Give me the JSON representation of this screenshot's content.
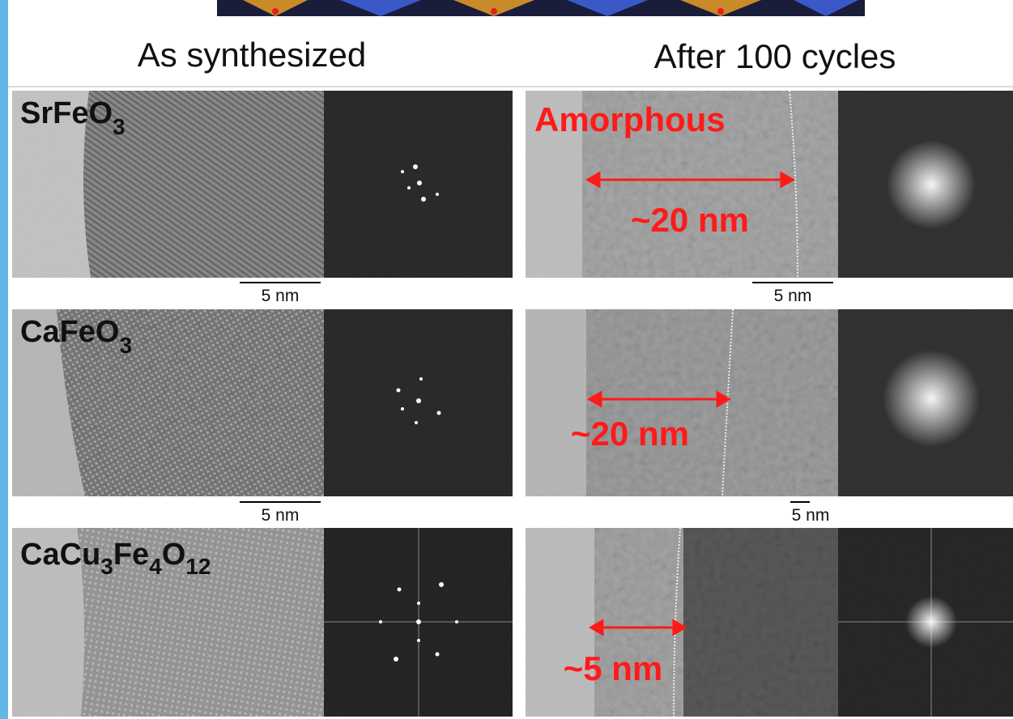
{
  "header": {
    "left": "As synthesized",
    "right": "After 100 cycles"
  },
  "rows": [
    {
      "formula": [
        "SrFeO",
        "3"
      ],
      "annotation": "Amorphous",
      "thickness": "~20 nm",
      "scale_left": "5 nm",
      "scale_right": "5 nm"
    },
    {
      "formula": [
        "CaFeO",
        "3"
      ],
      "thickness": "~20 nm",
      "scale_left": "5 nm",
      "scale_right": "5 nm"
    },
    {
      "formula": [
        "CaCu",
        "3",
        "Fe",
        "4",
        "O",
        "12"
      ],
      "thickness": "~5 nm"
    }
  ]
}
